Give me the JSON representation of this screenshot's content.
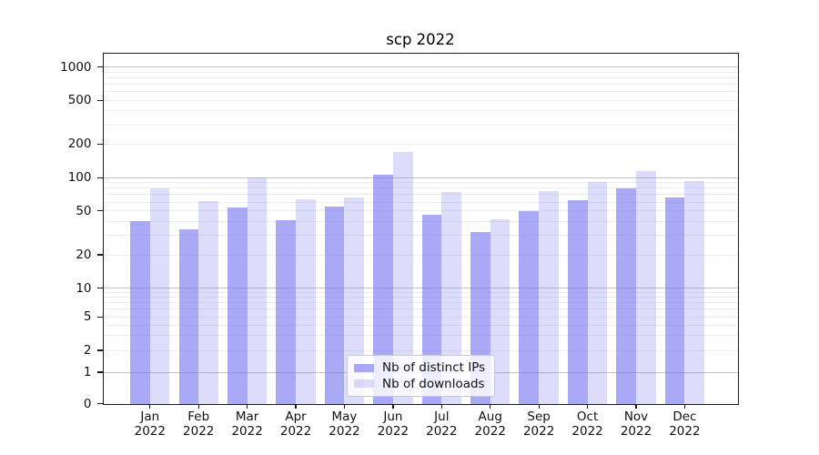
{
  "chart_data": {
    "type": "bar",
    "title": "scp 2022",
    "categories": [
      "Jan",
      "Feb",
      "Mar",
      "Apr",
      "May",
      "Jun",
      "Jul",
      "Aug",
      "Sep",
      "Oct",
      "Nov",
      "Dec"
    ],
    "year_label": "2022",
    "series": [
      {
        "name": "Nb of distinct IPs",
        "color": "#7878f0",
        "alpha": 0.64,
        "rendered_hex": "#a8a8f6",
        "values": [
          40,
          34,
          54,
          41,
          55,
          107,
          46,
          32,
          50,
          62,
          80,
          66
        ]
      },
      {
        "name": "Nb of downloads",
        "color": "#7878f0",
        "alpha": 0.26,
        "rendered_hex": "#dcdcfa",
        "values": [
          80,
          61,
          100,
          64,
          66,
          170,
          74,
          42,
          76,
          92,
          114,
          93
        ]
      }
    ],
    "yscale": "symlog",
    "ytick_labels": [
      "0",
      "1",
      "2",
      "5",
      "10",
      "20",
      "50",
      "100",
      "200",
      "500",
      "1000"
    ],
    "ylim": [
      0,
      1300
    ],
    "grid": "both",
    "legend_position": "lower center (inside plot)"
  },
  "colors": {
    "bar_dark": "#a8a8f6",
    "bar_light": "#dcdcfa",
    "grid_major": "#c3c3c3",
    "grid_minor": "#ececec",
    "axis_text": "#111111",
    "background": "#ffffff"
  }
}
